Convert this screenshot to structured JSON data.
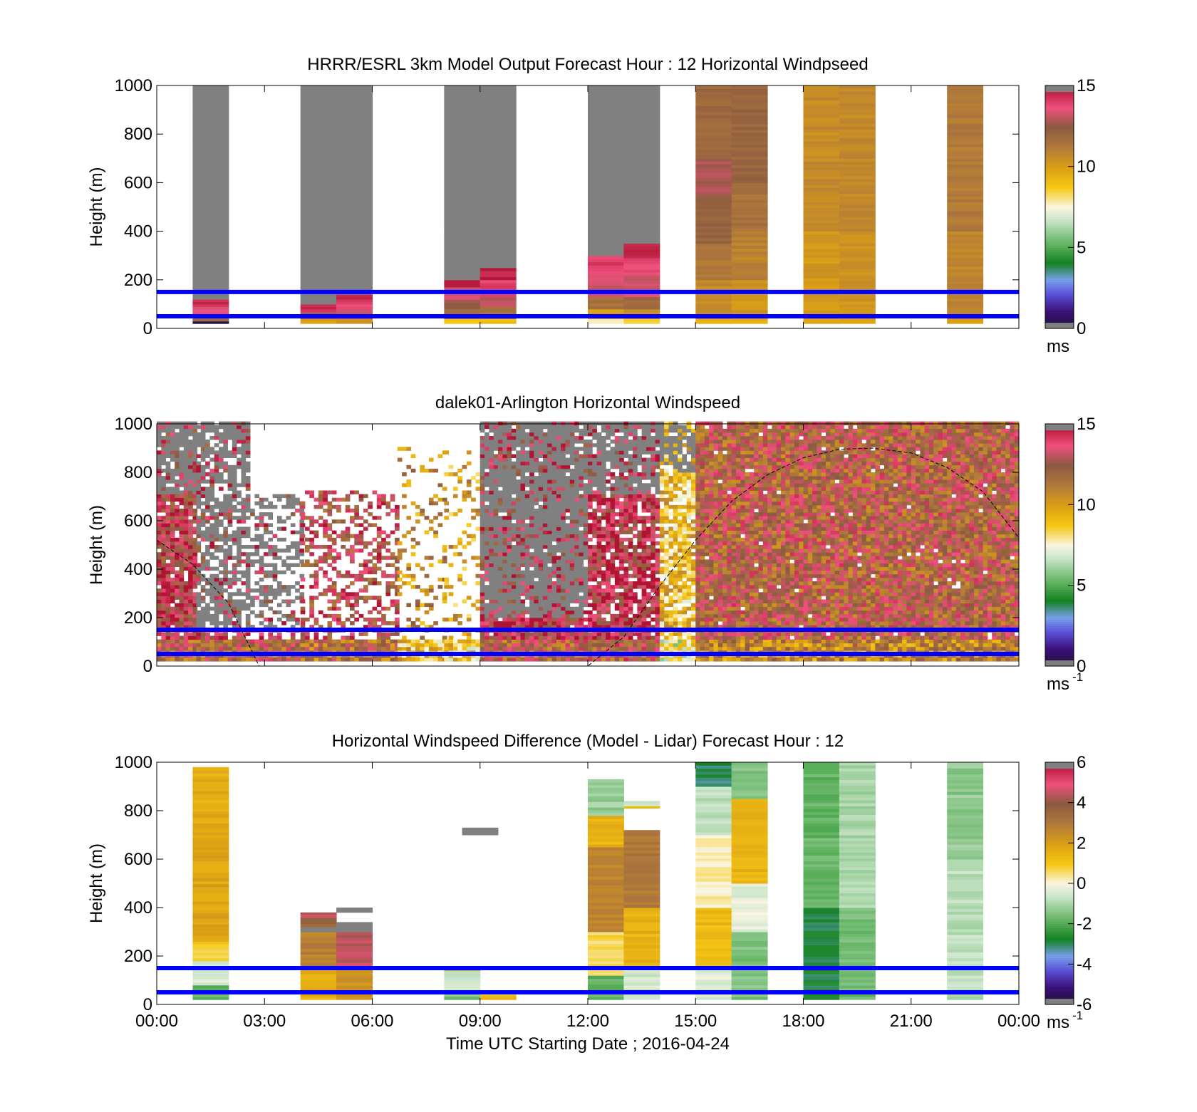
{
  "x_axis": {
    "label": "Time UTC  Starting Date ; 2016-04-24",
    "tick_labels": [
      "00:00",
      "03:00",
      "06:00",
      "09:00",
      "12:00",
      "15:00",
      "18:00",
      "21:00",
      "00:00"
    ]
  },
  "chart_data": [
    {
      "type": "heatmap",
      "title": "HRRR/ESRL 3km Model Output   Forecast Hour : 12 Horizontal Windpseed",
      "xlabel": "",
      "ylabel": "Height (m)",
      "xlim": [
        0,
        24
      ],
      "ylim": [
        0,
        1000
      ],
      "y_ticks": [
        0,
        200,
        400,
        600,
        800,
        1000
      ],
      "colorbar": {
        "min": 0,
        "max": 15,
        "ticks": [
          0,
          5,
          10,
          15
        ],
        "unit": "ms",
        "exponent": ""
      },
      "reference_lines_m": [
        50,
        150
      ],
      "columns": [
        {
          "t": 1.0,
          "levels": [
            [
              20,
              30,
              0.5
            ],
            [
              30,
              60,
              12.0
            ],
            [
              60,
              90,
              13.5
            ],
            [
              90,
              120,
              14.5
            ],
            [
              120,
              1000,
              16
            ]
          ]
        },
        {
          "t": 4.0,
          "levels": [
            [
              20,
              40,
              10.0
            ],
            [
              40,
              70,
              13.0
            ],
            [
              70,
              100,
              14.5
            ],
            [
              100,
              1000,
              16
            ]
          ]
        },
        {
          "t": 5.0,
          "levels": [
            [
              20,
              40,
              10.5
            ],
            [
              40,
              80,
              13.0
            ],
            [
              80,
              110,
              13.8
            ],
            [
              110,
              140,
              14.3
            ],
            [
              140,
              1000,
              16
            ]
          ]
        },
        {
          "t": 8.0,
          "levels": [
            [
              20,
              40,
              9.0
            ],
            [
              40,
              80,
              11.5
            ],
            [
              80,
              120,
              12.5
            ],
            [
              120,
              170,
              13.5
            ],
            [
              170,
              200,
              14.5
            ],
            [
              200,
              1000,
              16
            ]
          ]
        },
        {
          "t": 9.0,
          "levels": [
            [
              20,
              40,
              9.2
            ],
            [
              40,
              90,
              11.5
            ],
            [
              90,
              130,
              13.0
            ],
            [
              130,
              200,
              14.0
            ],
            [
              200,
              250,
              14.6
            ],
            [
              250,
              1000,
              16
            ]
          ]
        },
        {
          "t": 12.0,
          "levels": [
            [
              20,
              40,
              7.8
            ],
            [
              40,
              80,
              10.0
            ],
            [
              80,
              130,
              11.5
            ],
            [
              130,
              200,
              13.2
            ],
            [
              200,
              260,
              13.6
            ],
            [
              260,
              300,
              14.0
            ],
            [
              300,
              1000,
              16
            ]
          ]
        },
        {
          "t": 13.0,
          "levels": [
            [
              20,
              40,
              8.5
            ],
            [
              40,
              80,
              10.5
            ],
            [
              80,
              130,
              11.8
            ],
            [
              130,
              220,
              13.3
            ],
            [
              220,
              290,
              13.8
            ],
            [
              290,
              350,
              14.4
            ],
            [
              350,
              1000,
              16
            ]
          ]
        },
        {
          "t": 15.0,
          "levels": [
            [
              20,
              40,
              9.5
            ],
            [
              40,
              200,
              10.6
            ],
            [
              200,
              350,
              11.2
            ],
            [
              350,
              550,
              12.0
            ],
            [
              550,
              700,
              12.8
            ],
            [
              700,
              1000,
              11.8
            ]
          ]
        },
        {
          "t": 16.0,
          "levels": [
            [
              20,
              40,
              9.5
            ],
            [
              40,
              200,
              10.2
            ],
            [
              200,
              400,
              10.9
            ],
            [
              400,
              600,
              11.5
            ],
            [
              600,
              1000,
              12.0
            ]
          ]
        },
        {
          "t": 18.0,
          "levels": [
            [
              20,
              40,
              9.6
            ],
            [
              40,
              400,
              10.2
            ],
            [
              400,
              1000,
              10.6
            ]
          ]
        },
        {
          "t": 19.0,
          "levels": [
            [
              20,
              40,
              9.6
            ],
            [
              40,
              400,
              10.3
            ],
            [
              400,
              1000,
              10.7
            ]
          ]
        },
        {
          "t": 22.0,
          "levels": [
            [
              20,
              40,
              9.8
            ],
            [
              40,
              400,
              10.8
            ],
            [
              400,
              1000,
              11.2
            ]
          ]
        }
      ]
    },
    {
      "type": "heatmap",
      "title": "dalek01-Arlington  Horizontal Windspeed",
      "xlabel": "",
      "ylabel": "Height (m)",
      "xlim": [
        0,
        24
      ],
      "ylim": [
        0,
        1000
      ],
      "y_ticks": [
        0,
        200,
        400,
        600,
        800,
        1000
      ],
      "colorbar": {
        "min": 0,
        "max": 15,
        "ticks": [
          0,
          5,
          10,
          15
        ],
        "unit": "ms",
        "exponent": "-1"
      },
      "reference_lines_m": [
        50,
        150
      ],
      "curve_x": [
        0.0,
        1.0,
        2.0,
        2.85,
        3.0,
        4.0,
        11.0,
        12.0,
        13.0,
        14.0,
        15.0,
        16.0,
        17.0,
        18.0,
        19.0,
        19.9,
        21.0,
        22.0,
        23.0,
        24.0
      ],
      "curve_y": [
        520,
        420,
        260,
        0,
        0,
        0,
        0,
        0,
        120,
        330,
        520,
        680,
        790,
        860,
        895,
        900,
        880,
        820,
        720,
        530
      ],
      "segments": [
        {
          "t0": 0.0,
          "t1": 1.1,
          "zmax": 1000,
          "base": 13.6,
          "gray_above": 700,
          "gap_rate": 0.08
        },
        {
          "t0": 1.1,
          "t1": 2.6,
          "zmax": 1000,
          "base": 13.6,
          "gray_above": 150,
          "gap_rate": 0.25
        },
        {
          "t0": 2.6,
          "t1": 4.0,
          "zmax": 700,
          "base": 13.8,
          "gray_above": 150,
          "gap_rate": 0.55
        },
        {
          "t0": 4.0,
          "t1": 6.7,
          "zmax": 720,
          "base": 13.0,
          "gray_above": 900,
          "gap_rate": 0.55
        },
        {
          "t0": 6.7,
          "t1": 8.0,
          "zmax": 900,
          "base": 10.5,
          "gray_above": 900,
          "gap_rate": 0.8
        },
        {
          "t0": 8.0,
          "t1": 9.0,
          "zmax": 900,
          "base": 10.0,
          "gray_above": 900,
          "gap_rate": 0.75
        },
        {
          "t0": 9.0,
          "t1": 12.0,
          "zmax": 1000,
          "base": 13.8,
          "gray_above": 200,
          "gap_rate": 0.05
        },
        {
          "t0": 12.0,
          "t1": 14.0,
          "zmax": 1000,
          "base": 14.0,
          "gray_above": 700,
          "gap_rate": 0.15
        },
        {
          "t0": 14.0,
          "t1": 15.0,
          "zmax": 1000,
          "base": 9.0,
          "gray_above": 800,
          "gap_rate": 0.2
        },
        {
          "t0": 15.0,
          "t1": 24.0,
          "zmax": 1000,
          "base": 12.3,
          "gray_above": 2000,
          "gap_rate": 0.02
        }
      ]
    },
    {
      "type": "heatmap",
      "title": "Horizontal Windspeed Difference (Model - Lidar) Forecast Hour : 12",
      "xlabel": "Time UTC  Starting Date ; 2016-04-24",
      "ylabel": "Height (m)",
      "xlim": [
        0,
        24
      ],
      "ylim": [
        0,
        1000
      ],
      "y_ticks": [
        0,
        200,
        400,
        600,
        800,
        1000
      ],
      "colorbar": {
        "min": -6,
        "max": 6,
        "ticks": [
          -6,
          -4,
          -2,
          0,
          2,
          4,
          6
        ],
        "unit": "ms",
        "exponent": "-1"
      },
      "reference_lines_m": [
        50,
        150
      ],
      "columns": [
        {
          "t": 1.0,
          "levels": [
            [
              20,
              80,
              -1.8
            ],
            [
              80,
              180,
              -0.4
            ],
            [
              180,
              260,
              0.8
            ],
            [
              260,
              700,
              1.8
            ],
            [
              700,
              980,
              1.6
            ]
          ]
        },
        {
          "t": 4.0,
          "levels": [
            [
              20,
              150,
              1.6
            ],
            [
              150,
              300,
              2.8
            ],
            [
              300,
              320,
              7
            ],
            [
              320,
              360,
              3.5
            ],
            [
              360,
              380,
              4.5
            ]
          ]
        },
        {
          "t": 5.0,
          "levels": [
            [
              20,
              150,
              2.3
            ],
            [
              150,
              300,
              4.5
            ],
            [
              300,
              340,
              6.5
            ],
            [
              380,
              400,
              7
            ]
          ]
        },
        {
          "t": 8.0,
          "levels": [
            [
              20,
              60,
              -1.5
            ],
            [
              60,
              140,
              -0.5
            ],
            [
              140,
              150,
              2.0
            ]
          ]
        },
        {
          "t": 8.5,
          "levels": [
            [
              700,
              730,
              7
            ]
          ]
        },
        {
          "t": 9.0,
          "levels": [
            [
              20,
              40,
              1.5
            ]
          ]
        },
        {
          "t": 12.0,
          "levels": [
            [
              20,
              120,
              -1.8
            ],
            [
              120,
              300,
              0.6
            ],
            [
              300,
              650,
              2.6
            ],
            [
              650,
              780,
              1.5
            ],
            [
              780,
              930,
              -1.2
            ]
          ]
        },
        {
          "t": 13.0,
          "levels": [
            [
              20,
              150,
              -0.5
            ],
            [
              150,
              400,
              1.5
            ],
            [
              400,
              720,
              3.0
            ],
            [
              810,
              820,
              1.2
            ],
            [
              820,
              840,
              -0.4
            ]
          ]
        },
        {
          "t": 15.0,
          "levels": [
            [
              20,
              150,
              -0.4
            ],
            [
              150,
              400,
              1.3
            ],
            [
              400,
              700,
              0.2
            ],
            [
              700,
              900,
              -0.8
            ],
            [
              900,
              1000,
              -3.0
            ]
          ]
        },
        {
          "t": 16.0,
          "levels": [
            [
              20,
              300,
              -1.5
            ],
            [
              300,
              500,
              -0.3
            ],
            [
              500,
              850,
              1.4
            ],
            [
              850,
              1000,
              -1.5
            ]
          ]
        },
        {
          "t": 18.0,
          "levels": [
            [
              20,
              400,
              -2.8
            ],
            [
              400,
              1000,
              -1.8
            ]
          ]
        },
        {
          "t": 19.0,
          "levels": [
            [
              20,
              400,
              -1.6
            ],
            [
              400,
              1000,
              -1.0
            ]
          ]
        },
        {
          "t": 22.0,
          "levels": [
            [
              20,
              60,
              -1.2
            ],
            [
              60,
              120,
              -0.6
            ],
            [
              120,
              600,
              -0.8
            ],
            [
              600,
              1000,
              -1.3
            ]
          ]
        }
      ]
    }
  ]
}
